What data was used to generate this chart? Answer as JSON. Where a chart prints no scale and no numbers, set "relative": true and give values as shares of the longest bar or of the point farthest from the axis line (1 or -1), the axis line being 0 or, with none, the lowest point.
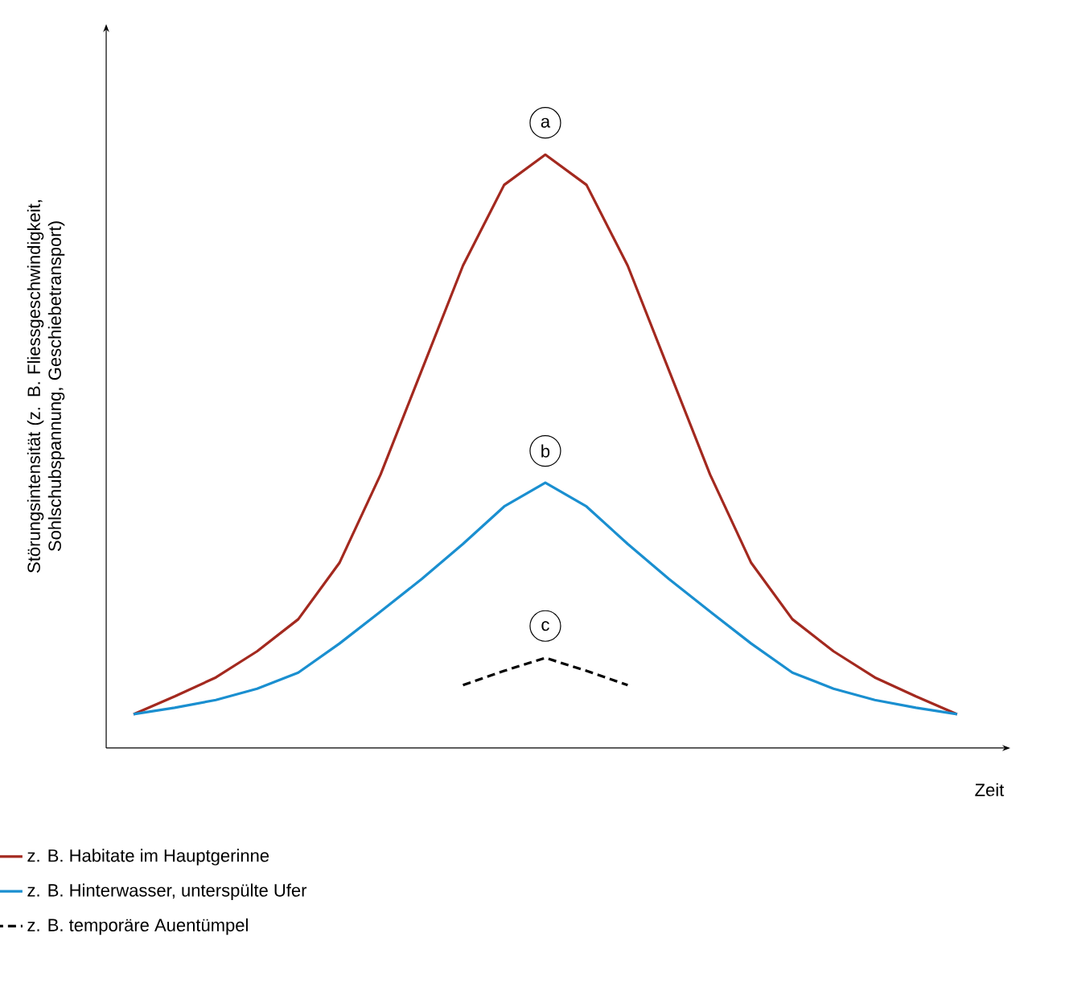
{
  "chart_data": {
    "type": "line",
    "relative": true,
    "legend": "bottom",
    "xlabel": "Zeit",
    "ylabel": "Störungsintensität  (z. B. Fliessgeschwindigkeit, Sohlschubspannung, Geschiebetransport)",
    "categories": [
      null,
      null,
      null,
      null,
      null,
      null,
      null,
      null,
      null,
      null,
      null,
      null,
      null,
      null,
      null,
      null,
      null,
      null,
      null,
      null,
      null
    ],
    "series": [
      {
        "name": "z. B. Habitate im Hauptgerinne",
        "color": "#a3291f",
        "line_style": "solid",
        "values": [
          0.057,
          0.087,
          0.119,
          0.163,
          0.217,
          0.312,
          0.461,
          0.637,
          0.813,
          0.949,
          1,
          0.949,
          0.813,
          0.637,
          0.461,
          0.312,
          0.217,
          0.163,
          0.119,
          0.087,
          0.057
        ]
      },
      {
        "name": "z. B. Hinterwasser, unterspülte Ufer",
        "color": "#1a8fd0",
        "line_style": "solid",
        "values": [
          0.057,
          0.068,
          0.081,
          0.1,
          0.127,
          0.176,
          0.23,
          0.285,
          0.344,
          0.407,
          0.447,
          0.407,
          0.344,
          0.285,
          0.23,
          0.176,
          0.127,
          0.1,
          0.081,
          0.068,
          0.057
        ]
      },
      {
        "name": "z. B. temporäre Auentümpel",
        "color": "#000000",
        "line_style": "dashed",
        "values": [
          null,
          null,
          null,
          null,
          null,
          null,
          null,
          null,
          0.106,
          0.13,
          0.152,
          0.13,
          0.106,
          null,
          null,
          null,
          null,
          null,
          null,
          null,
          null
        ]
      }
    ],
    "annotations": [
      "a",
      "b",
      "c"
    ]
  }
}
